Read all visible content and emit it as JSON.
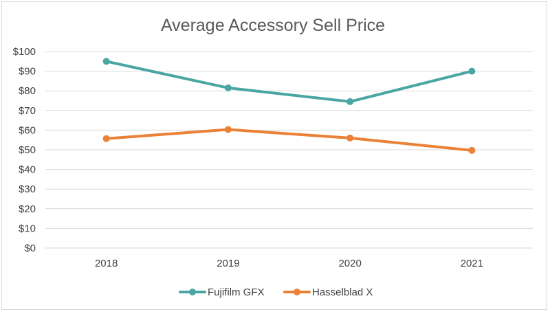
{
  "chart_data": {
    "type": "line",
    "title": "Average Accessory Sell Price",
    "xlabel": "",
    "ylabel": "",
    "categories": [
      "2018",
      "2019",
      "2020",
      "2021"
    ],
    "ylim": [
      0,
      100
    ],
    "yticks": [
      0,
      10,
      20,
      30,
      40,
      50,
      60,
      70,
      80,
      90,
      100
    ],
    "ytick_labels": [
      "$0",
      "$10",
      "$20",
      "$30",
      "$40",
      "$50",
      "$60",
      "$70",
      "$80",
      "$90",
      "$100"
    ],
    "grid": true,
    "legend_position": "bottom",
    "series": [
      {
        "name": "Fujifilm GFX",
        "color": "#4aa6a2",
        "values": [
          95,
          81.5,
          74.5,
          90
        ]
      },
      {
        "name": "Hasselblad X",
        "color": "#ea8136",
        "values": [
          55.7,
          60.3,
          56,
          49.7
        ]
      }
    ]
  }
}
